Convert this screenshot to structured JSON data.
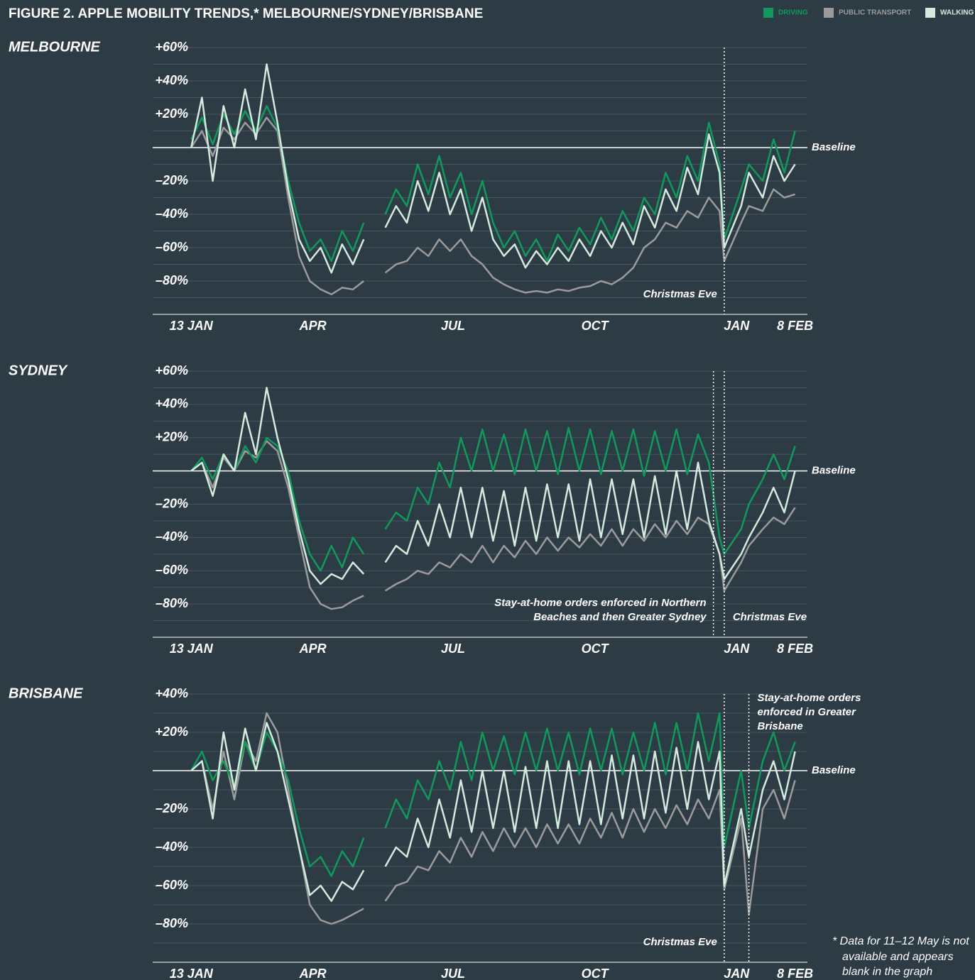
{
  "title": "FIGURE 2. APPLE MOBILITY TRENDS,* MELBOURNE/SYDNEY/BRISBANE",
  "footnote": [
    "* Data for 11–12 May is not",
    "available and appears",
    "blank in the graph"
  ],
  "chart_data": [
    {
      "type": "line",
      "title": "MELBOURNE",
      "x": [
        0,
        7,
        14,
        21,
        28,
        35,
        42,
        49,
        56,
        63,
        70,
        77,
        84,
        91,
        98,
        105,
        112,
        119,
        126,
        133,
        140,
        147,
        154,
        161,
        168,
        175,
        182,
        189,
        196,
        203,
        210,
        217,
        224,
        231,
        238,
        245,
        252,
        259,
        266,
        273,
        280,
        287,
        294,
        301,
        308,
        315,
        322,
        329,
        336,
        343,
        346,
        357,
        362,
        371,
        378,
        385,
        392
      ],
      "xlim": [
        -25,
        400
      ],
      "xticks": [
        {
          "value": 0,
          "label": "13 JAN"
        },
        {
          "value": 79,
          "label": "APR"
        },
        {
          "value": 170,
          "label": "JUL"
        },
        {
          "value": 262,
          "label": "OCT"
        },
        {
          "value": 354,
          "label": "JAN"
        },
        {
          "value": 392,
          "label": "8 FEB"
        }
      ],
      "ylim": [
        -100,
        60
      ],
      "yticks": [
        {
          "value": 60,
          "label": "+60%"
        },
        {
          "value": 40,
          "label": "+40%"
        },
        {
          "value": 20,
          "label": "+20%"
        },
        {
          "value": -20,
          "label": "–20%"
        },
        {
          "value": -40,
          "label": "–40%"
        },
        {
          "value": -60,
          "label": "–60%"
        },
        {
          "value": -80,
          "label": "–80%"
        }
      ],
      "minor_yticks": [
        50,
        30,
        10,
        -10,
        -30,
        -50,
        -70,
        -90
      ],
      "grid": true,
      "baseline": {
        "value": 0,
        "label": "Baseline"
      },
      "annotations": [
        {
          "x": 346,
          "lines": [
            "Christmas Eve"
          ],
          "side": "left",
          "position": "bottom"
        }
      ],
      "series": [
        {
          "name": "DRIVING",
          "color": "#0e9a5b",
          "values": [
            5,
            18,
            2,
            20,
            8,
            22,
            10,
            25,
            12,
            -20,
            -45,
            -62,
            -55,
            -68,
            -50,
            -62,
            -45,
            null,
            -40,
            -25,
            -35,
            -10,
            -28,
            -5,
            -30,
            -15,
            -40,
            -20,
            -45,
            -60,
            -50,
            -65,
            -55,
            -68,
            -52,
            -62,
            -48,
            -58,
            -42,
            -55,
            -38,
            -50,
            -30,
            -40,
            -15,
            -30,
            -5,
            -20,
            15,
            -10,
            -55,
            -25,
            -10,
            -20,
            5,
            -15,
            10
          ]
        },
        {
          "name": "PUBLIC TRANSPORT",
          "color": "#9b9b9b",
          "values": [
            0,
            10,
            -5,
            12,
            5,
            15,
            8,
            18,
            10,
            -30,
            -65,
            -80,
            -85,
            -88,
            -84,
            -85,
            -80,
            null,
            -75,
            -70,
            -68,
            -60,
            -65,
            -55,
            -62,
            -55,
            -65,
            -70,
            -78,
            -82,
            -85,
            -87,
            -86,
            -87,
            -85,
            -86,
            -84,
            -83,
            -80,
            -82,
            -78,
            -72,
            -60,
            -55,
            -45,
            -48,
            -38,
            -42,
            -30,
            -38,
            -68,
            -45,
            -35,
            -38,
            -25,
            -30,
            -28
          ]
        },
        {
          "name": "WALKING",
          "color": "#d3ebdd",
          "values": [
            0,
            30,
            -20,
            25,
            0,
            35,
            5,
            50,
            15,
            -25,
            -55,
            -68,
            -60,
            -75,
            -58,
            -70,
            -55,
            null,
            -48,
            -35,
            -45,
            -20,
            -38,
            -15,
            -40,
            -25,
            -50,
            -30,
            -55,
            -65,
            -58,
            -72,
            -62,
            -70,
            -60,
            -68,
            -55,
            -65,
            -50,
            -60,
            -45,
            -58,
            -35,
            -48,
            -25,
            -38,
            -12,
            -28,
            8,
            -15,
            -60,
            -35,
            -15,
            -30,
            -5,
            -20,
            -10
          ]
        }
      ]
    },
    {
      "type": "line",
      "title": "SYDNEY",
      "x": [
        0,
        7,
        14,
        21,
        28,
        35,
        42,
        49,
        56,
        63,
        70,
        77,
        84,
        91,
        98,
        105,
        112,
        119,
        126,
        133,
        140,
        147,
        154,
        161,
        168,
        175,
        182,
        189,
        196,
        203,
        210,
        217,
        224,
        231,
        238,
        245,
        252,
        259,
        266,
        273,
        280,
        287,
        294,
        301,
        308,
        315,
        322,
        329,
        336,
        343,
        346,
        357,
        362,
        371,
        378,
        385,
        392
      ],
      "xlim": [
        -25,
        400
      ],
      "xticks": [
        {
          "value": 0,
          "label": "13 JAN"
        },
        {
          "value": 79,
          "label": "APR"
        },
        {
          "value": 170,
          "label": "JUL"
        },
        {
          "value": 262,
          "label": "OCT"
        },
        {
          "value": 354,
          "label": "JAN"
        },
        {
          "value": 392,
          "label": "8 FEB"
        }
      ],
      "ylim": [
        -100,
        60
      ],
      "yticks": [
        {
          "value": 60,
          "label": "+60%"
        },
        {
          "value": 40,
          "label": "+40%"
        },
        {
          "value": 20,
          "label": "+20%"
        },
        {
          "value": -20,
          "label": "–20%"
        },
        {
          "value": -40,
          "label": "–40%"
        },
        {
          "value": -60,
          "label": "–60%"
        },
        {
          "value": -80,
          "label": "–80%"
        }
      ],
      "minor_yticks": [
        50,
        30,
        10,
        -10,
        -30,
        -50,
        -70,
        -90
      ],
      "grid": true,
      "baseline": {
        "value": 0,
        "label": "Baseline"
      },
      "annotations": [
        {
          "x": 339,
          "lines": [
            "Stay-at-home orders enforced in Northern",
            "Beaches and then Greater Sydney"
          ],
          "side": "left",
          "position": "bottom"
        },
        {
          "x": 346,
          "lines": [
            "Christmas Eve"
          ],
          "side": "right",
          "position": "bottom"
        }
      ],
      "series": [
        {
          "name": "DRIVING",
          "color": "#0e9a5b",
          "values": [
            0,
            8,
            -5,
            10,
            0,
            15,
            5,
            20,
            15,
            0,
            -30,
            -50,
            -60,
            -45,
            -58,
            -40,
            -50,
            null,
            -35,
            -25,
            -30,
            -10,
            -20,
            5,
            -10,
            20,
            0,
            25,
            0,
            22,
            -2,
            25,
            0,
            24,
            -2,
            26,
            0,
            25,
            -2,
            24,
            0,
            25,
            -3,
            24,
            0,
            25,
            -2,
            22,
            5,
            -40,
            -50,
            -35,
            -20,
            -5,
            10,
            -5,
            15
          ]
        },
        {
          "name": "PUBLIC TRANSPORT",
          "color": "#9b9b9b",
          "values": [
            0,
            5,
            -10,
            8,
            0,
            12,
            8,
            18,
            12,
            -10,
            -40,
            -70,
            -80,
            -83,
            -82,
            -78,
            -75,
            null,
            -72,
            -68,
            -65,
            -60,
            -62,
            -55,
            -58,
            -50,
            -55,
            -45,
            -55,
            -45,
            -52,
            -42,
            -50,
            -40,
            -48,
            -40,
            -46,
            -38,
            -45,
            -35,
            -45,
            -35,
            -42,
            -32,
            -40,
            -30,
            -38,
            -28,
            -32,
            -50,
            -72,
            -55,
            -45,
            -35,
            -28,
            -32,
            -22
          ]
        },
        {
          "name": "WALKING",
          "color": "#d3ebdd",
          "values": [
            0,
            5,
            -15,
            10,
            0,
            35,
            10,
            50,
            20,
            -5,
            -35,
            -60,
            -68,
            -62,
            -65,
            -55,
            -62,
            null,
            -55,
            -45,
            -50,
            -30,
            -45,
            -20,
            -40,
            -10,
            -40,
            -10,
            -42,
            -12,
            -45,
            -10,
            -42,
            -8,
            -40,
            -8,
            -42,
            -5,
            -40,
            -5,
            -38,
            -5,
            -40,
            -3,
            -38,
            0,
            -35,
            5,
            -30,
            -50,
            -65,
            -50,
            -40,
            -25,
            -10,
            -25,
            0
          ]
        }
      ]
    },
    {
      "type": "line",
      "title": "BRISBANE",
      "x": [
        0,
        7,
        14,
        21,
        28,
        35,
        42,
        49,
        56,
        63,
        70,
        77,
        84,
        91,
        98,
        105,
        112,
        119,
        126,
        133,
        140,
        147,
        154,
        161,
        168,
        175,
        182,
        189,
        196,
        203,
        210,
        217,
        224,
        231,
        238,
        245,
        252,
        259,
        266,
        273,
        280,
        287,
        294,
        301,
        308,
        315,
        322,
        329,
        336,
        343,
        346,
        357,
        362,
        371,
        378,
        385,
        392
      ],
      "xlim": [
        -25,
        400
      ],
      "xticks": [
        {
          "value": 0,
          "label": "13 JAN"
        },
        {
          "value": 79,
          "label": "APR"
        },
        {
          "value": 170,
          "label": "JUL"
        },
        {
          "value": 262,
          "label": "OCT"
        },
        {
          "value": 354,
          "label": "JAN"
        },
        {
          "value": 392,
          "label": "8 FEB"
        }
      ],
      "ylim": [
        -100,
        40
      ],
      "yticks": [
        {
          "value": 40,
          "label": "+40%"
        },
        {
          "value": 20,
          "label": "+20%"
        },
        {
          "value": -20,
          "label": "–20%"
        },
        {
          "value": -40,
          "label": "–40%"
        },
        {
          "value": -60,
          "label": "–60%"
        },
        {
          "value": -80,
          "label": "–80%"
        }
      ],
      "minor_yticks": [
        30,
        10,
        -10,
        -30,
        -50,
        -70,
        -90
      ],
      "grid": true,
      "baseline": {
        "value": 0,
        "label": "Baseline"
      },
      "annotations": [
        {
          "x": 346,
          "lines": [
            "Christmas Eve"
          ],
          "side": "left",
          "position": "bottom"
        },
        {
          "x": 362,
          "lines": [
            "Stay-at-home orders",
            "enforced in Greater",
            "Brisbane"
          ],
          "side": "right",
          "position": "top"
        }
      ],
      "series": [
        {
          "name": "DRIVING",
          "color": "#0e9a5b",
          "values": [
            0,
            10,
            -5,
            5,
            -8,
            15,
            0,
            20,
            10,
            -5,
            -30,
            -50,
            -45,
            -55,
            -42,
            -50,
            -35,
            null,
            -30,
            -15,
            -25,
            -5,
            -15,
            5,
            -10,
            15,
            -5,
            20,
            0,
            18,
            -2,
            20,
            0,
            22,
            0,
            20,
            -2,
            22,
            0,
            22,
            -2,
            20,
            0,
            25,
            -2,
            25,
            0,
            30,
            5,
            30,
            -40,
            0,
            -30,
            5,
            20,
            0,
            15
          ]
        },
        {
          "name": "PUBLIC TRANSPORT",
          "color": "#9b9b9b",
          "values": [
            0,
            5,
            -20,
            10,
            -15,
            15,
            5,
            30,
            20,
            -10,
            -40,
            -70,
            -78,
            -80,
            -78,
            -75,
            -72,
            null,
            -68,
            -60,
            -58,
            -50,
            -52,
            -42,
            -48,
            -35,
            -45,
            -32,
            -42,
            -30,
            -40,
            -30,
            -40,
            -28,
            -38,
            -28,
            -38,
            -25,
            -35,
            -22,
            -35,
            -20,
            -32,
            -20,
            -30,
            -18,
            -28,
            -15,
            -25,
            -10,
            -62,
            -25,
            -75,
            -20,
            -10,
            -25,
            -5
          ]
        },
        {
          "name": "WALKING",
          "color": "#d3ebdd",
          "values": [
            0,
            5,
            -25,
            20,
            -10,
            22,
            0,
            25,
            10,
            -15,
            -40,
            -65,
            -60,
            -68,
            -58,
            -62,
            -52,
            null,
            -50,
            -40,
            -45,
            -25,
            -40,
            -15,
            -35,
            -5,
            -32,
            0,
            -30,
            0,
            -32,
            2,
            -30,
            5,
            -30,
            5,
            -28,
            5,
            -28,
            8,
            -25,
            8,
            -25,
            10,
            -22,
            12,
            -20,
            15,
            -15,
            10,
            -60,
            -20,
            -45,
            -10,
            5,
            -15,
            10
          ]
        }
      ]
    }
  ]
}
